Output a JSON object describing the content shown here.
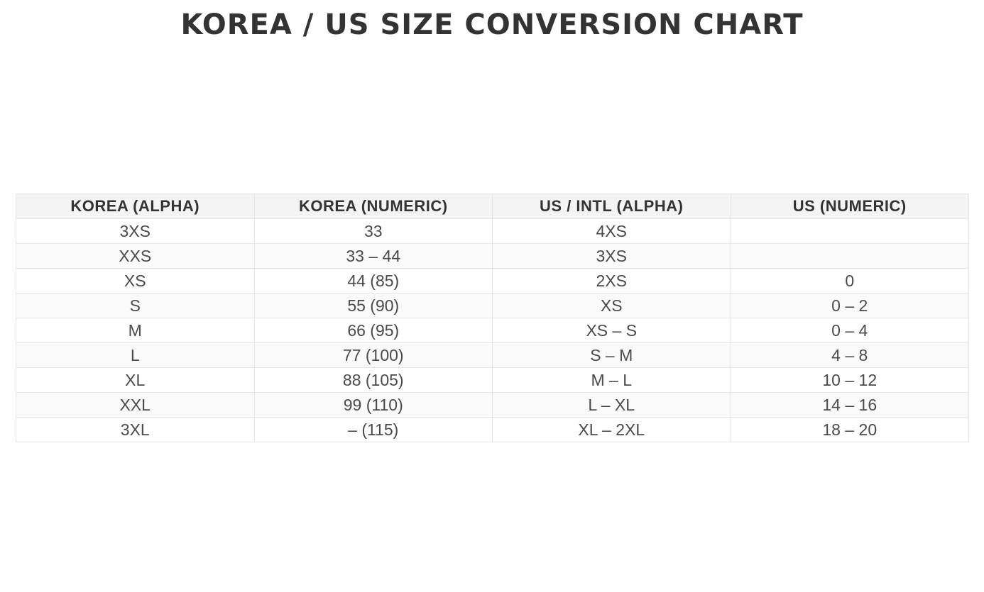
{
  "title": "KOREA / US SIZE CONVERSION CHART",
  "theme": {
    "page_bg": "#ffffff",
    "title_color": "#333333",
    "header_bg": "#f4f4f4",
    "header_text": "#333333",
    "cell_text": "#4a4a4a",
    "row_alt_bg": "#fafafa",
    "border_color": "#e5e5e5"
  },
  "chart_data": {
    "type": "table",
    "title": "KOREA / US SIZE CONVERSION CHART",
    "columns": [
      "KOREA (ALPHA)",
      "KOREA (NUMERIC)",
      "US / INTL (ALPHA)",
      "US (NUMERIC)"
    ],
    "rows": [
      [
        "3XS",
        "33",
        "4XS",
        ""
      ],
      [
        "XXS",
        "33 – 44",
        "3XS",
        ""
      ],
      [
        "XS",
        "44 (85)",
        "2XS",
        "0"
      ],
      [
        "S",
        "55 (90)",
        "XS",
        "0 – 2"
      ],
      [
        "M",
        "66 (95)",
        "XS – S",
        "0 – 4"
      ],
      [
        "L",
        "77 (100)",
        "S – M",
        "4 – 8"
      ],
      [
        "XL",
        "88 (105)",
        "M – L",
        "10 – 12"
      ],
      [
        "XXL",
        "99 (110)",
        "L – XL",
        "14 – 16"
      ],
      [
        "3XL",
        "– (115)",
        "XL – 2XL",
        "18 – 20"
      ]
    ]
  }
}
